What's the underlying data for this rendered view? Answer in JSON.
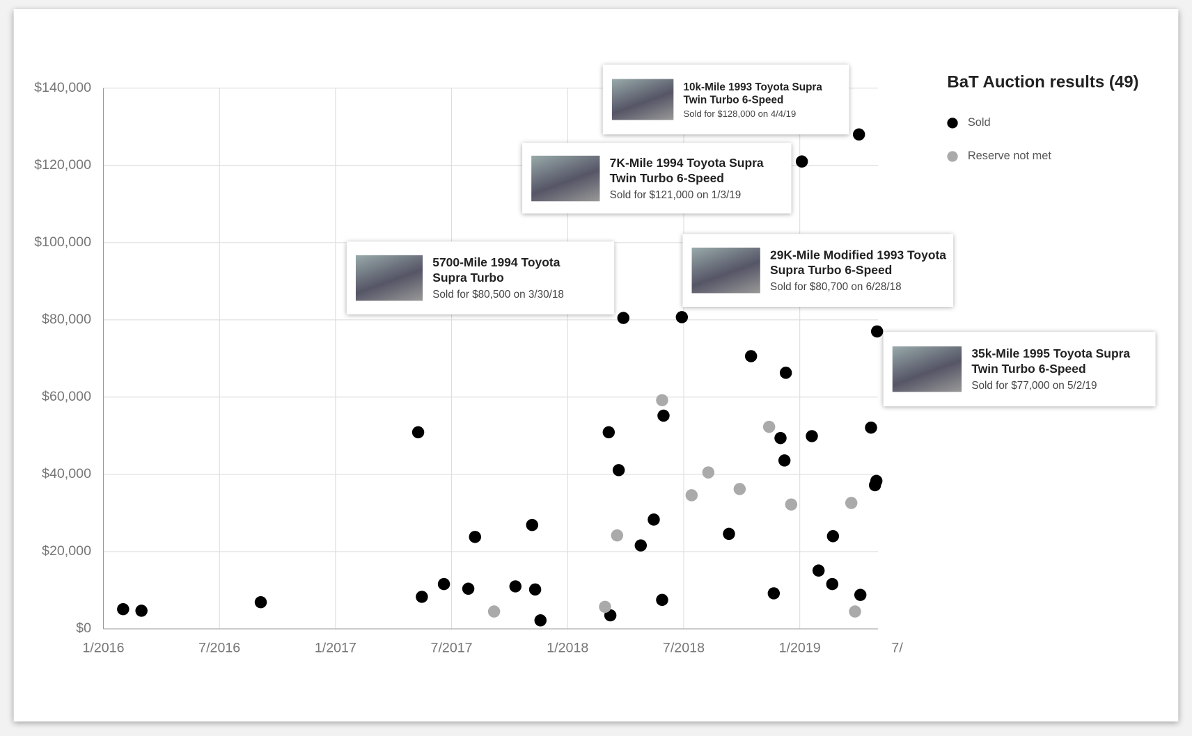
{
  "chart_data": {
    "type": "scatter",
    "xlim": [
      2016,
      2019.337
    ],
    "ylim": [
      0,
      140000
    ],
    "xticks": [
      {
        "value": 2016,
        "label": "1/2016"
      },
      {
        "value": 2016.5,
        "label": "7/2016"
      },
      {
        "value": 2017,
        "label": "1/2017"
      },
      {
        "value": 2017.5,
        "label": "7/2017"
      },
      {
        "value": 2018,
        "label": "1/2018"
      },
      {
        "value": 2018.5,
        "label": "7/2018"
      },
      {
        "value": 2019,
        "label": "1/2019"
      },
      {
        "value": 2019.5,
        "label": "7/"
      }
    ],
    "yticks": [
      {
        "value": 0,
        "label": "$0"
      },
      {
        "value": 20000,
        "label": "$20,000"
      },
      {
        "value": 40000,
        "label": "$40,000"
      },
      {
        "value": 60000,
        "label": "$60,000"
      },
      {
        "value": 80000,
        "label": "$80,000"
      },
      {
        "value": 100000,
        "label": "$100,000"
      },
      {
        "value": 120000,
        "label": "$120,000"
      },
      {
        "value": 140000,
        "label": "$140,000"
      }
    ],
    "grid": true,
    "legend_title": "BaT Auction results (49)",
    "legend": "right",
    "series": [
      {
        "name": "Sold",
        "color": "#000000",
        "x": [
          2016.085,
          2016.164,
          2016.678,
          2017.356,
          2017.372,
          2017.467,
          2017.572,
          2017.601,
          2017.775,
          2017.847,
          2017.86,
          2017.883,
          2018.177,
          2018.184,
          2018.22,
          2018.24,
          2018.315,
          2018.371,
          2018.407,
          2018.413,
          2018.492,
          2018.695,
          2018.79,
          2018.888,
          2018.917,
          2018.934,
          2018.94,
          2019.009,
          2019.052,
          2019.081,
          2019.14,
          2019.143,
          2019.255,
          2019.261,
          2019.307,
          2019.324,
          2019.33,
          2019.333
        ],
        "values": [
          5100,
          4700,
          6900,
          50900,
          8300,
          11600,
          10400,
          23800,
          11000,
          26900,
          10200,
          2200,
          50900,
          3500,
          41100,
          80500,
          21600,
          28300,
          7500,
          55200,
          80700,
          24600,
          70600,
          9200,
          49400,
          43600,
          66300,
          121000,
          49900,
          15100,
          11600,
          24000,
          128000,
          8800,
          52100,
          37200,
          38300,
          77000
        ]
      },
      {
        "name": "Reserve not met",
        "color": "#aaaaaa",
        "x": [
          2017.683,
          2018.161,
          2018.213,
          2018.407,
          2018.534,
          2018.606,
          2018.741,
          2018.868,
          2018.963,
          2019.222,
          2019.238
        ],
        "values": [
          4500,
          5700,
          24200,
          59200,
          34600,
          40500,
          36200,
          52300,
          32200,
          32600,
          4500
        ]
      }
    ],
    "annotations": [
      {
        "title": "10k-Mile 1993 Toyota Supra Twin Turbo 6-Speed",
        "detail": "Sold for $128,000 on 4/4/19"
      },
      {
        "title": "7K-Mile 1994 Toyota Supra Twin Turbo 6-Speed",
        "detail": "Sold for $121,000 on 1/3/19"
      },
      {
        "title": "5700-Mile 1994 Toyota Supra Turbo",
        "detail": "Sold for $80,500 on 3/30/18"
      },
      {
        "title": "29K-Mile Modified 1993 Toyota Supra Turbo 6-Speed",
        "detail": "Sold for $80,700 on 6/28/18"
      },
      {
        "title": "35k-Mile 1995 Toyota Supra Twin Turbo 6-Speed",
        "detail": "Sold for $77,000 on 5/2/19"
      }
    ]
  }
}
